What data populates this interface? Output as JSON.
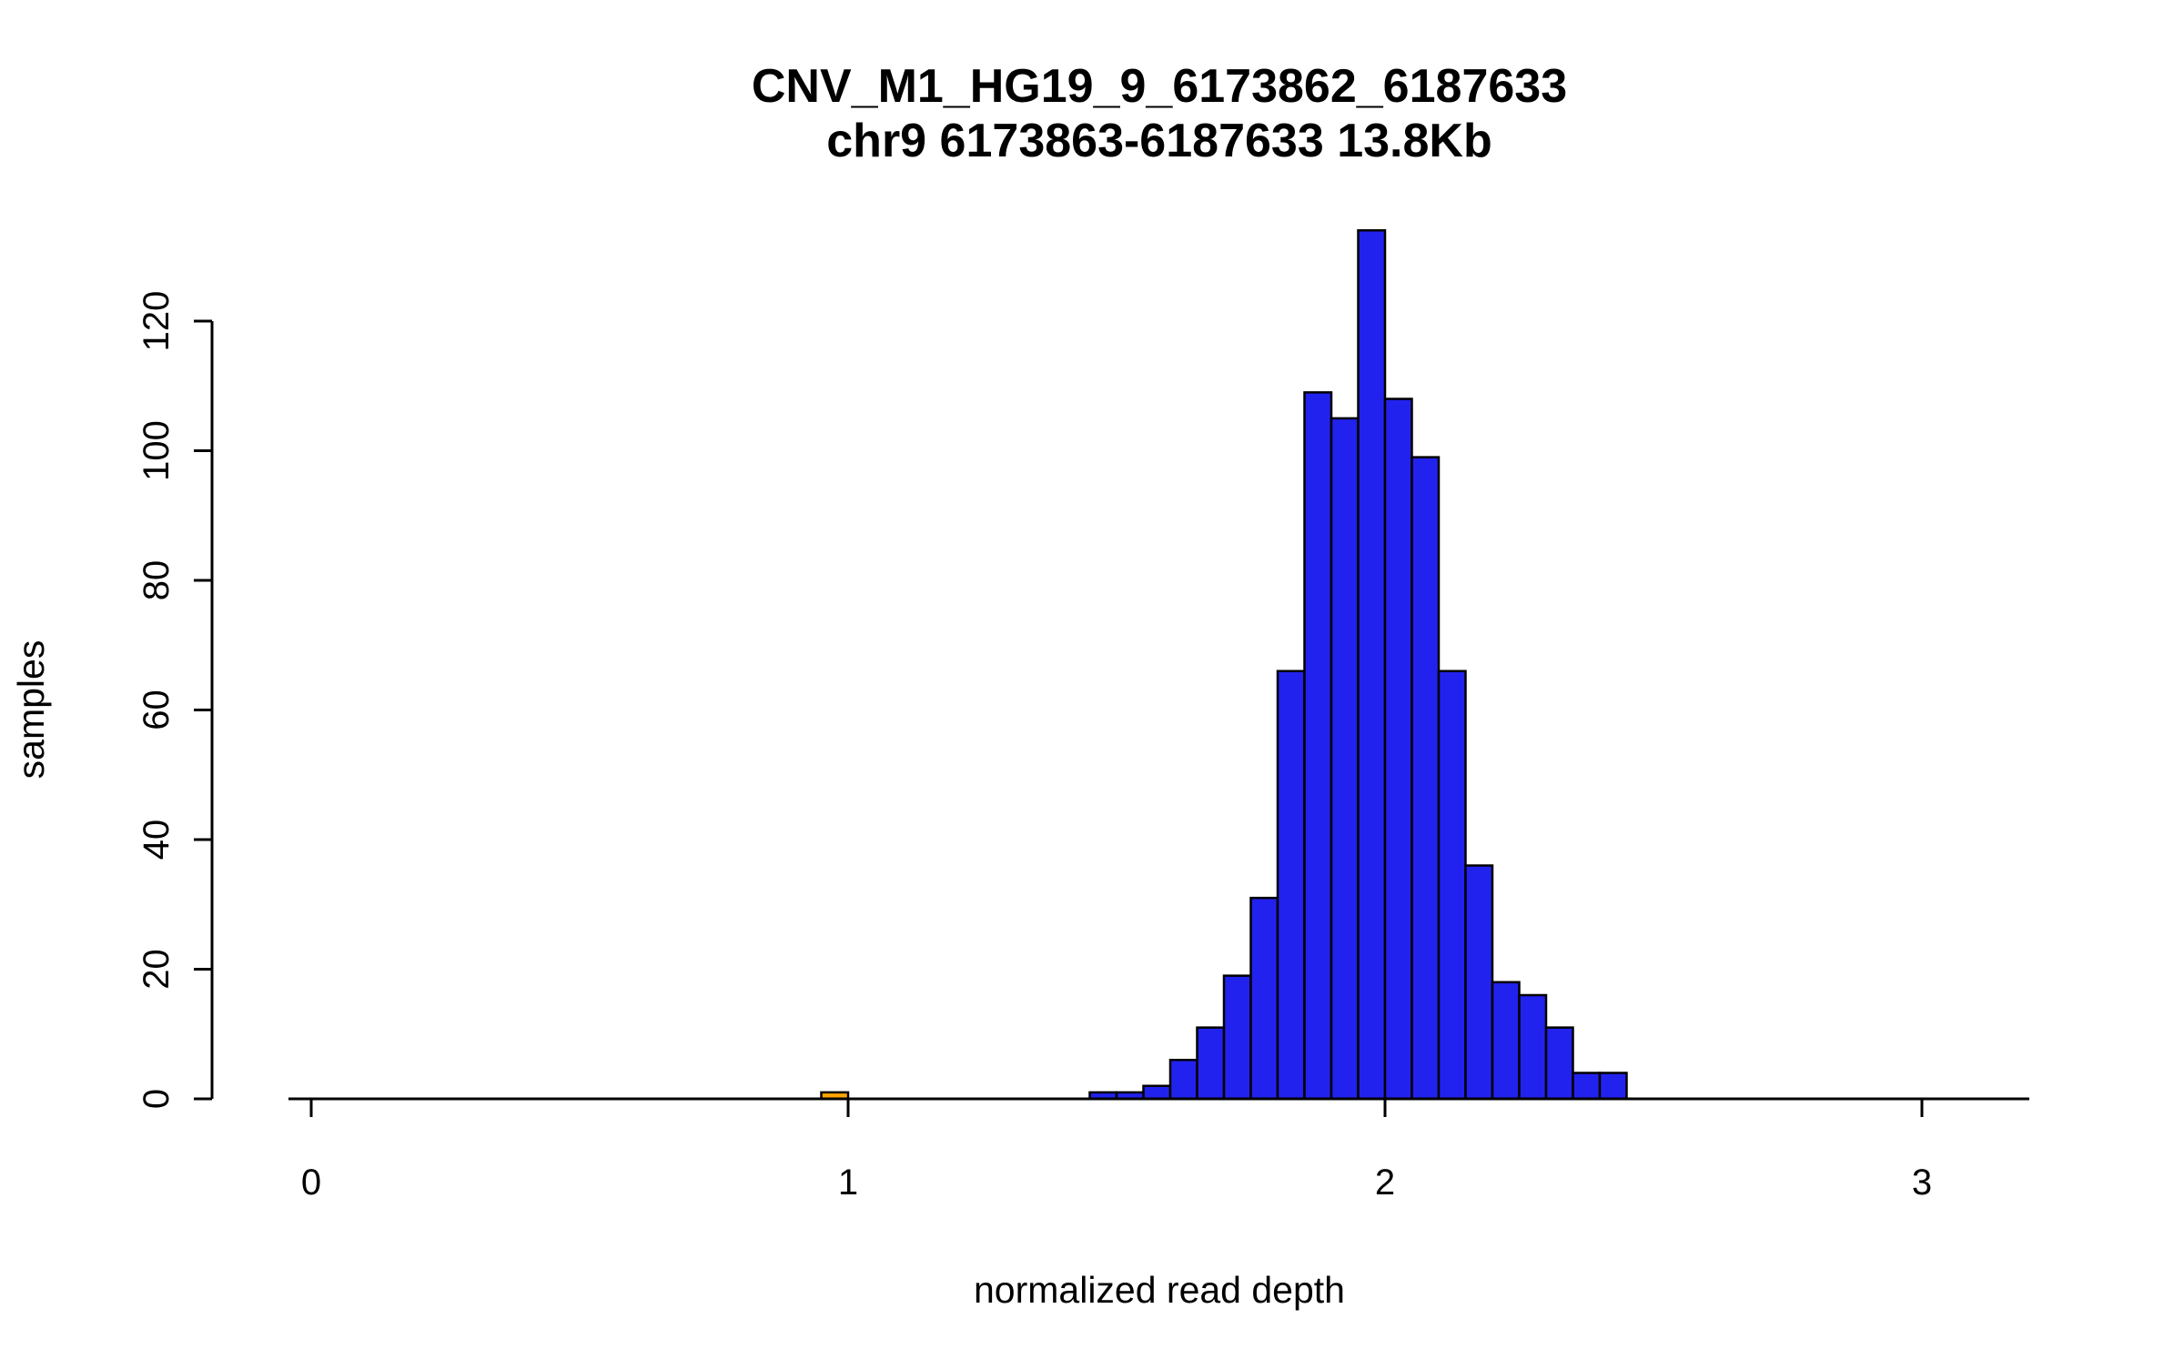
{
  "chart": {
    "title": "CNV_M1_HG19_9_6173862_6187633",
    "subtitle": "chr9 6173863-6187633 13.8Kb",
    "xlabel": "normalized read depth",
    "ylabel": "samples"
  },
  "chart_data": {
    "type": "bar",
    "subtype": "histogram",
    "title": "CNV_M1_HG19_9_6173862_6187633",
    "subtitle": "chr9 6173863-6187633 13.8Kb",
    "xlabel": "normalized read depth",
    "ylabel": "samples",
    "grid": false,
    "legend": false,
    "bin_width": 0.05,
    "xlim": [
      0,
      3.2
    ],
    "ylim": [
      0,
      134
    ],
    "x_ticks": [
      0,
      1,
      2,
      3
    ],
    "y_ticks": [
      0,
      20,
      40,
      60,
      80,
      100,
      120
    ],
    "bar_fill": "#2222EE",
    "bar_stroke": "#000000",
    "highlight_color": "#FFA500",
    "bars": [
      {
        "x": 0.95,
        "count": 1,
        "color": "#FFA500"
      },
      {
        "x": 1.45,
        "count": 1
      },
      {
        "x": 1.5,
        "count": 1
      },
      {
        "x": 1.55,
        "count": 2
      },
      {
        "x": 1.6,
        "count": 6
      },
      {
        "x": 1.65,
        "count": 11
      },
      {
        "x": 1.7,
        "count": 19
      },
      {
        "x": 1.75,
        "count": 31
      },
      {
        "x": 1.8,
        "count": 66
      },
      {
        "x": 1.85,
        "count": 109
      },
      {
        "x": 1.9,
        "count": 105
      },
      {
        "x": 1.95,
        "count": 134
      },
      {
        "x": 2.0,
        "count": 108
      },
      {
        "x": 2.05,
        "count": 99
      },
      {
        "x": 2.1,
        "count": 66
      },
      {
        "x": 2.15,
        "count": 36
      },
      {
        "x": 2.2,
        "count": 18
      },
      {
        "x": 2.25,
        "count": 16
      },
      {
        "x": 2.3,
        "count": 11
      },
      {
        "x": 2.35,
        "count": 4
      },
      {
        "x": 2.4,
        "count": 4
      }
    ]
  }
}
